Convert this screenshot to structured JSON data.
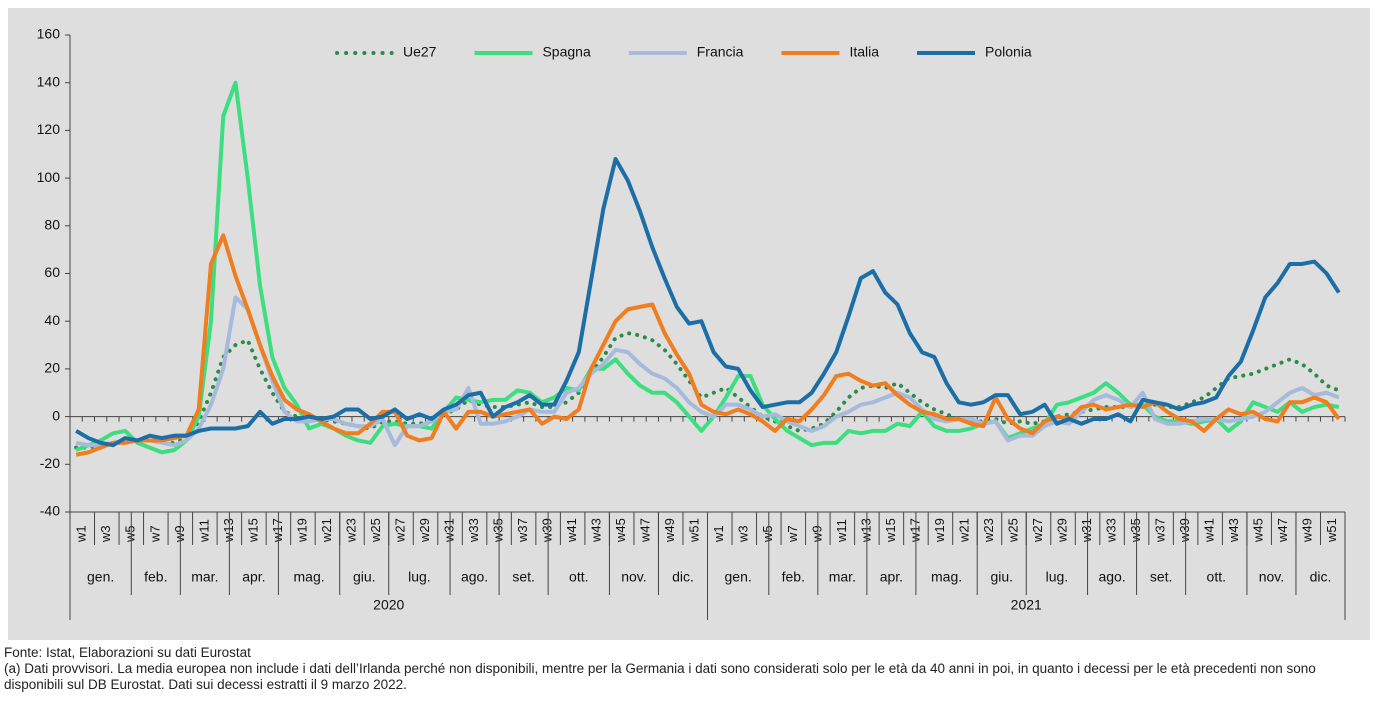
{
  "chart_data": {
    "type": "line",
    "categories": [
      "w1",
      null,
      "w3",
      null,
      "w5",
      null,
      "w7",
      null,
      "w9",
      null,
      "w11",
      null,
      "w13",
      null,
      "w15",
      null,
      "w17",
      null,
      "w19",
      null,
      "w21",
      null,
      "w23",
      null,
      "w25",
      null,
      "w27",
      null,
      "w29",
      null,
      "w31",
      null,
      "w33",
      null,
      "w35",
      null,
      "w37",
      null,
      "w39",
      null,
      "w41",
      null,
      "w43",
      null,
      "w45",
      null,
      "w47",
      null,
      "w49",
      null,
      "w51",
      null,
      "w1",
      null,
      "w3",
      null,
      "w5",
      null,
      "w7",
      null,
      "w9",
      null,
      "w11",
      null,
      "w13",
      null,
      "w15",
      null,
      "w17",
      null,
      "w19",
      null,
      "w21",
      null,
      "w23",
      null,
      "w25",
      null,
      "w27",
      null,
      "w29",
      null,
      "w31",
      null,
      "w33",
      null,
      "w35",
      null,
      "w37",
      null,
      "w39",
      null,
      "w41",
      null,
      "w43",
      null,
      "w45",
      null,
      "w47",
      null,
      "w49",
      null,
      "w51",
      null
    ],
    "groups": [
      {
        "label": "2020",
        "months": [
          {
            "label": "gen.",
            "weeks": 5
          },
          {
            "label": "feb.",
            "weeks": 4
          },
          {
            "label": "mar.",
            "weeks": 4
          },
          {
            "label": "apr.",
            "weeks": 4
          },
          {
            "label": "mag.",
            "weeks": 5
          },
          {
            "label": "giu.",
            "weeks": 4
          },
          {
            "label": "lug.",
            "weeks": 5
          },
          {
            "label": "ago.",
            "weeks": 4
          },
          {
            "label": "set.",
            "weeks": 4
          },
          {
            "label": "ott.",
            "weeks": 5
          },
          {
            "label": "nov.",
            "weeks": 4
          },
          {
            "label": "dic.",
            "weeks": 4
          }
        ]
      },
      {
        "label": "2021",
        "months": [
          {
            "label": "gen.",
            "weeks": 5
          },
          {
            "label": "feb.",
            "weeks": 4
          },
          {
            "label": "mar.",
            "weeks": 4
          },
          {
            "label": "apr.",
            "weeks": 4
          },
          {
            "label": "mag.",
            "weeks": 5
          },
          {
            "label": "giu.",
            "weeks": 4
          },
          {
            "label": "lug.",
            "weeks": 5
          },
          {
            "label": "ago.",
            "weeks": 4
          },
          {
            "label": "set.",
            "weeks": 4
          },
          {
            "label": "ott.",
            "weeks": 5
          },
          {
            "label": "nov.",
            "weeks": 4
          },
          {
            "label": "dic.",
            "weeks": 4
          }
        ]
      }
    ],
    "series": [
      {
        "name": "Ue27",
        "color": "#2e8b47",
        "dotted": true,
        "values": [
          -13,
          -13,
          -12,
          -11,
          -10,
          -10,
          -10,
          -11,
          -11,
          -9,
          -2,
          10,
          25,
          30,
          32,
          20,
          10,
          2,
          0,
          0,
          -1,
          -2,
          -3,
          -4,
          -5,
          -2,
          -2,
          -3,
          -3,
          -2,
          1,
          3,
          7,
          5,
          4,
          4,
          5,
          6,
          4,
          4,
          6,
          10,
          18,
          25,
          33,
          35,
          34,
          32,
          28,
          22,
          15,
          8,
          10,
          12,
          8,
          4,
          0,
          -2,
          -4,
          -6,
          -5,
          -3,
          2,
          8,
          12,
          13,
          12,
          14,
          10,
          6,
          3,
          1,
          -1,
          -2,
          -2,
          -1,
          -3,
          -2,
          -3,
          -2,
          0,
          1,
          2,
          3,
          4,
          4,
          4,
          5,
          5,
          4,
          4,
          6,
          8,
          12,
          16,
          17,
          18,
          20,
          22,
          24,
          22,
          18,
          13,
          11
        ]
      },
      {
        "name": "Spagna",
        "color": "#3dde7f",
        "values": [
          -14,
          -12,
          -10,
          -7,
          -6,
          -11,
          -13,
          -15,
          -14,
          -10,
          0,
          40,
          126,
          140,
          100,
          55,
          25,
          12,
          5,
          -5,
          -3,
          -5,
          -8,
          -10,
          -11,
          -4,
          -3,
          -4,
          -4,
          -5,
          2,
          8,
          7,
          6,
          7,
          7,
          11,
          10,
          6,
          8,
          12,
          11,
          20,
          20,
          24,
          18,
          13,
          10,
          10,
          6,
          0,
          -6,
          0,
          8,
          17,
          17,
          5,
          -1,
          -6,
          -9,
          -12,
          -11,
          -11,
          -6,
          -7,
          -6,
          -6,
          -3,
          -4,
          2,
          -4,
          -6,
          -6,
          -5,
          -3,
          -2,
          -9,
          -7,
          -5,
          -3,
          5,
          6,
          8,
          10,
          14,
          10,
          5,
          5,
          0,
          -2,
          -2,
          -3,
          -2,
          -1,
          -6,
          -2,
          6,
          4,
          2,
          6,
          2,
          4,
          5,
          4
        ]
      },
      {
        "name": "Francia",
        "color": "#a6bbdb",
        "values": [
          -11,
          -12,
          -12,
          -11,
          -10,
          -10,
          -10,
          -11,
          -12,
          -10,
          -5,
          5,
          20,
          50,
          45,
          30,
          15,
          2,
          -2,
          -2,
          -1,
          -1,
          -3,
          -4,
          -4,
          -1,
          -12,
          -4,
          -4,
          -2,
          2,
          3,
          12,
          -3,
          -3,
          -2,
          0,
          3,
          2,
          2,
          10,
          12,
          18,
          22,
          28,
          27,
          22,
          18,
          16,
          12,
          6,
          2,
          0,
          5,
          5,
          3,
          0,
          1,
          -2,
          -4,
          -6,
          -4,
          0,
          2,
          5,
          6,
          8,
          10,
          8,
          3,
          -1,
          -2,
          -1,
          -1,
          -3,
          -2,
          -10,
          -8,
          -8,
          -4,
          -2,
          -3,
          2,
          7,
          9,
          7,
          4,
          10,
          -1,
          -3,
          -3,
          -2,
          -1,
          -1,
          -2,
          -1,
          0,
          2,
          6,
          10,
          12,
          9,
          10,
          8
        ]
      },
      {
        "name": "Italia",
        "color": "#f07d1f",
        "values": [
          -16,
          -15,
          -13,
          -11,
          -11,
          -10,
          -10,
          -10,
          -9,
          -8,
          3,
          64,
          76,
          59,
          45,
          30,
          17,
          7,
          3,
          1,
          -2,
          -5,
          -7,
          -7,
          -3,
          2,
          2,
          -8,
          -10,
          -9,
          2,
          -5,
          2,
          2,
          0,
          1,
          2,
          3,
          -3,
          0,
          -1,
          3,
          20,
          30,
          40,
          45,
          46,
          47,
          35,
          26,
          18,
          5,
          2,
          1,
          3,
          1,
          -2,
          -6,
          -1,
          -2,
          3,
          9,
          17,
          18,
          15,
          13,
          14,
          9,
          5,
          2,
          1,
          -1,
          -1,
          -3,
          -4,
          8,
          -1,
          -5,
          -7,
          -2,
          0,
          -1,
          4,
          5,
          3,
          4,
          5,
          4,
          6,
          2,
          -1,
          -2,
          -6,
          -1,
          3,
          1,
          2,
          -1,
          -2,
          6,
          6,
          8,
          6,
          -1
        ]
      },
      {
        "name": "Polonia",
        "color": "#1b6ea6",
        "values": [
          -6,
          -9,
          -11,
          -12,
          -9,
          -10,
          -8,
          -9,
          -8,
          -8,
          -6,
          -5,
          -5,
          -5,
          -4,
          2,
          -3,
          -1,
          -1,
          0,
          -1,
          0,
          3,
          3,
          -1,
          0,
          3,
          -1,
          1,
          -1,
          3,
          5,
          9,
          10,
          0,
          4,
          6,
          9,
          5,
          5,
          15,
          27,
          57,
          87,
          108,
          99,
          86,
          71,
          58,
          46,
          39,
          40,
          27,
          21,
          20,
          11,
          4,
          5,
          6,
          6,
          10,
          18,
          27,
          42,
          58,
          61,
          52,
          47,
          35,
          27,
          25,
          14,
          6,
          5,
          6,
          9,
          9,
          1,
          2,
          5,
          -3,
          -1,
          -3,
          -1,
          -1,
          1,
          -2,
          7,
          6,
          5,
          3,
          5,
          6,
          8,
          17,
          23,
          36,
          50,
          56,
          64,
          64,
          65,
          60,
          52
        ]
      }
    ],
    "ylim": [
      -40,
      160
    ],
    "yticks": [
      -40,
      -20,
      0,
      20,
      40,
      60,
      80,
      100,
      120,
      140,
      160
    ],
    "legend": "top",
    "grid": false,
    "notes": [
      "Fonte: Istat, Elaborazioni su dati Eurostat",
      "(a) Dati provvisori. La media europea non include i dati dell’Irlanda perché non disponibili, mentre per la Germania i dati sono considerati solo per le età da 40 anni in poi, in quanto i decessi per le età precedenti non sono disponibili sul DB Eurostat. Dati sui decessi estratti il 9 marzo 2022."
    ]
  }
}
